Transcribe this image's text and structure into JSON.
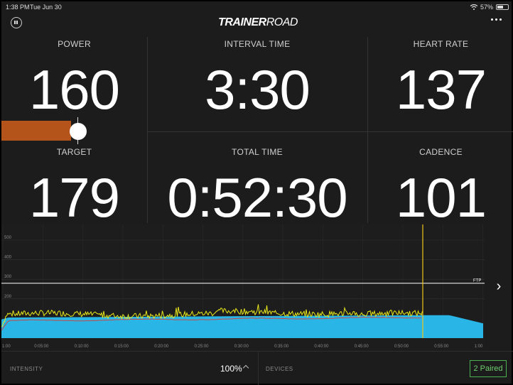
{
  "status_bar": {
    "time": "1:38 PM",
    "date": "Tue Jun 30",
    "battery": "57%",
    "battery_level": 0.57
  },
  "header": {
    "logo_bold": "TRAINER",
    "logo_light": "ROAD"
  },
  "metrics": {
    "power": {
      "label": "POWER",
      "value": "160"
    },
    "interval_time": {
      "label": "INTERVAL TIME",
      "value": "3:30"
    },
    "heart_rate": {
      "label": "HEART RATE",
      "value": "137"
    },
    "target": {
      "label": "TARGET",
      "value": "179"
    },
    "total_time": {
      "label": "TOTAL TIME",
      "value": "0:52:30"
    },
    "cadence": {
      "label": "CADENCE",
      "value": "101"
    }
  },
  "chart": {
    "y_ticks": [
      "500",
      "400",
      "300",
      "200"
    ],
    "ftp_label": "FTP",
    "x_ticks": [
      "1:00",
      "0:05:00",
      "0:10:00",
      "0:15:00",
      "0:20:00",
      "0:25:00",
      "0:30:00",
      "0:35:00",
      "0:40:00",
      "0:45:00",
      "0:50:00",
      "0:55:00",
      "1:00"
    ],
    "colors": {
      "workout": "#29b6e6",
      "power": "#e8e81c",
      "heart_rate": "#c44a4a",
      "cursor": "#f0c419",
      "ftp_line": "#ffffff"
    }
  },
  "bottom_bar": {
    "intensity_label": "INTENSITY",
    "intensity_value": "100%",
    "devices_label": "DEVICES",
    "paired_label": "2  Paired"
  }
}
